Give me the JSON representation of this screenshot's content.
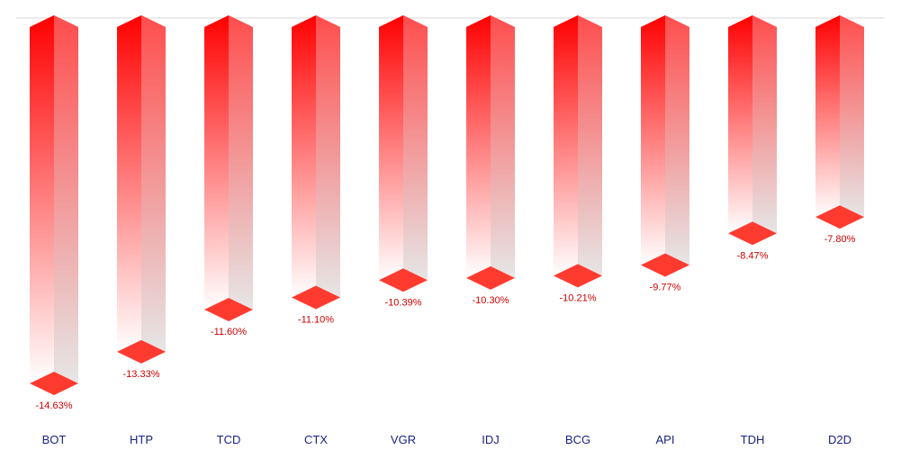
{
  "chart_data": {
    "type": "bar",
    "title": "",
    "xlabel": "",
    "ylabel": "",
    "categories": [
      "BOT",
      "HTP",
      "TCD",
      "CTX",
      "VGR",
      "IDJ",
      "BCG",
      "API",
      "TDH",
      "D2D"
    ],
    "values": [
      -14.63,
      -13.33,
      -11.6,
      -11.1,
      -10.39,
      -10.3,
      -10.21,
      -9.77,
      -8.47,
      -7.8
    ],
    "value_labels": [
      "-14.63%",
      "-13.33%",
      "-11.60%",
      "-11.10%",
      "-10.39%",
      "-10.30%",
      "-10.21%",
      "-9.77%",
      "-8.47%",
      "-7.80%"
    ],
    "ylim": [
      -17,
      0
    ],
    "grid": false,
    "legend": "none",
    "colors": {
      "bar_front_top": "#ff0000",
      "bar_front_bottom": "#ffffff",
      "bar_side_top": "#ff4d4d",
      "bar_side_bottom": "#e6e6e6",
      "bar_cap": "#ff3b30",
      "value_label": "#cc0000",
      "category_label": "#1a237e",
      "baseline": "#d9d9d9"
    }
  }
}
